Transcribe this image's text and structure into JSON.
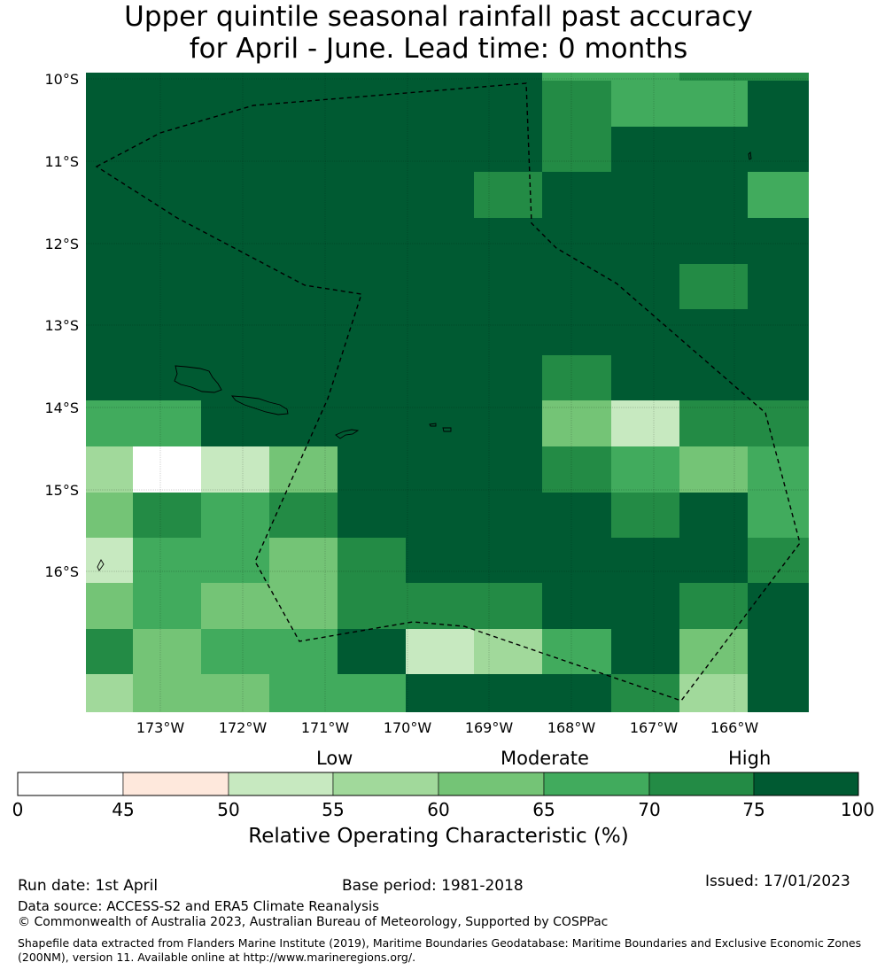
{
  "title": {
    "line1": "Upper quintile seasonal rainfall past accuracy",
    "line2": "for April - June. Lead time: 0 months"
  },
  "map": {
    "lat_labels": [
      "10°S",
      "11°S",
      "12°S",
      "13°S",
      "14°S",
      "15°S",
      "16°S"
    ],
    "lon_labels": [
      "173°W",
      "172°W",
      "171°W",
      "170°W",
      "169°W",
      "168°W",
      "167°W",
      "166°W"
    ],
    "grid_values": [
      [
        80,
        80,
        80,
        80,
        80,
        80,
        80,
        72,
        67,
        67,
        80
      ],
      [
        80,
        80,
        80,
        80,
        80,
        80,
        80,
        72,
        80,
        80,
        80
      ],
      [
        80,
        80,
        80,
        80,
        80,
        80,
        72,
        80,
        80,
        80,
        67
      ],
      [
        80,
        80,
        80,
        80,
        80,
        80,
        80,
        80,
        80,
        80,
        80
      ],
      [
        80,
        80,
        80,
        80,
        80,
        80,
        80,
        80,
        80,
        72,
        80
      ],
      [
        80,
        80,
        80,
        80,
        80,
        80,
        80,
        80,
        80,
        80,
        80
      ],
      [
        80,
        80,
        80,
        80,
        80,
        80,
        80,
        72,
        80,
        80,
        80
      ],
      [
        67,
        67,
        80,
        80,
        80,
        80,
        80,
        62,
        52,
        72,
        72
      ],
      [
        57,
        0,
        52,
        62,
        80,
        80,
        80,
        72,
        67,
        62,
        67
      ],
      [
        62,
        72,
        67,
        72,
        80,
        80,
        80,
        80,
        72,
        80,
        67
      ],
      [
        52,
        67,
        67,
        62,
        72,
        80,
        80,
        80,
        80,
        80,
        72
      ],
      [
        62,
        67,
        62,
        62,
        72,
        72,
        72,
        80,
        80,
        72,
        80
      ],
      [
        72,
        62,
        67,
        67,
        80,
        52,
        57,
        67,
        80,
        62,
        80
      ],
      [
        57,
        62,
        62,
        67,
        67,
        80,
        80,
        80,
        72,
        57,
        80
      ]
    ],
    "color_scale": [
      "#ffffff",
      "#fee8dc",
      "#c7e9c0",
      "#a1d99b",
      "#74c476",
      "#41ab5d",
      "#238b45",
      "#005a32"
    ]
  },
  "legend": {
    "category_labels": [
      "Low",
      "Moderate",
      "High"
    ],
    "ticks": [
      "0",
      "45",
      "50",
      "55",
      "60",
      "65",
      "70",
      "75",
      "100"
    ],
    "axis_label": "Relative Operating Characteristic (%)"
  },
  "footer": {
    "run_date": "Run date: 1st April",
    "base_period": "Base period: 1981-2018",
    "issued": "Issued: 17/01/2023",
    "data_source": "Data source: ACCESS-S2 and ERA5 Climate Reanalysis",
    "copyright": "© Commonwealth of Australia 2023, Australian Bureau of Meteorology, Supported by COSPPac",
    "shapefile_line1": "Shapefile data extracted from Flanders Marine Institute (2019), Maritime Boundaries Geodatabase: Maritime Boundaries and Exclusive Economic Zones",
    "shapefile_line2": "(200NM), version 11. Available online at http://www.marineregions.org/."
  }
}
